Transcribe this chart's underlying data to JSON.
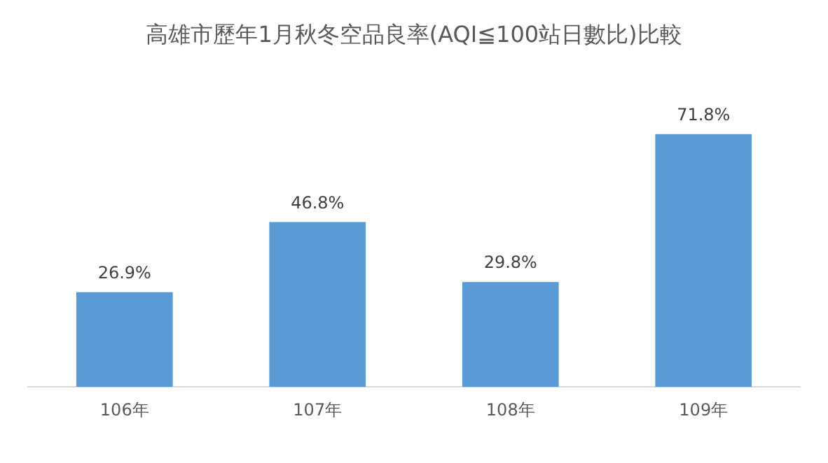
{
  "chart_data": {
    "type": "bar",
    "title": "高雄市歷年1月秋冬空品良率(AQI≦100站日數比)比較",
    "categories": [
      "106年",
      "107年",
      "108年",
      "109年"
    ],
    "values": [
      26.9,
      46.8,
      29.8,
      71.8
    ],
    "color": "#5b9bd5",
    "data_labels": true,
    "value_labels": [
      "26.9%",
      "46.8%",
      "29.8%",
      "71.8%"
    ],
    "grid": false,
    "legend": false
  }
}
